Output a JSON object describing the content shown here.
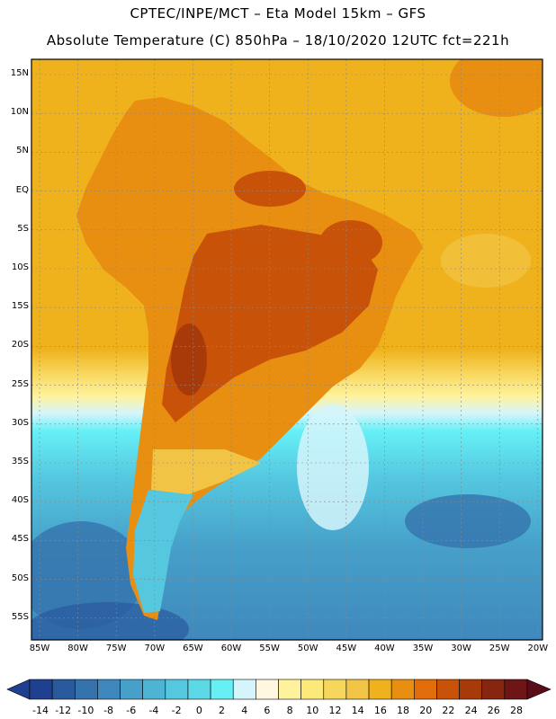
{
  "header": {
    "line1": "CPTEC/INPE/MCT –  Eta Model 15km – GFS",
    "line2": "Absolute Temperature (C) 850hPa – 18/10/2020 12UTC fct=221h"
  },
  "axes": {
    "lat_labels": [
      "15N",
      "10N",
      "5N",
      "EQ",
      "5S",
      "10S",
      "15S",
      "20S",
      "25S",
      "30S",
      "35S",
      "40S",
      "45S",
      "50S",
      "55S"
    ],
    "lon_labels": [
      "85W",
      "80W",
      "75W",
      "70W",
      "65W",
      "60W",
      "55W",
      "50W",
      "45W",
      "40W",
      "35W",
      "30W",
      "25W",
      "20W"
    ]
  },
  "colorbar": {
    "labels": [
      "-14",
      "-12",
      "-10",
      "-8",
      "-6",
      "-4",
      "-2",
      "0",
      "2",
      "4",
      "6",
      "8",
      "10",
      "12",
      "14",
      "16",
      "18",
      "20",
      "22",
      "24",
      "26",
      "28"
    ],
    "colors": [
      "#1f3f8f",
      "#2a5a9e",
      "#3573ad",
      "#3f88bd",
      "#46a0c9",
      "#4db4d4",
      "#55c8e0",
      "#5cd8e6",
      "#66f0f6",
      "#d5f5fc",
      "#fff7e0",
      "#fff29c",
      "#fde87a",
      "#f7d65c",
      "#f2c446",
      "#f0b21c",
      "#e88f12",
      "#e06c0a",
      "#c95209",
      "#a83a0a",
      "#862611",
      "#6e1515"
    ]
  },
  "colors": {
    "ocean_warm": "#f0b21c",
    "ocean_cold": "#3f88bd",
    "land_hot": "#c95209",
    "land_warm": "#e88f12"
  }
}
